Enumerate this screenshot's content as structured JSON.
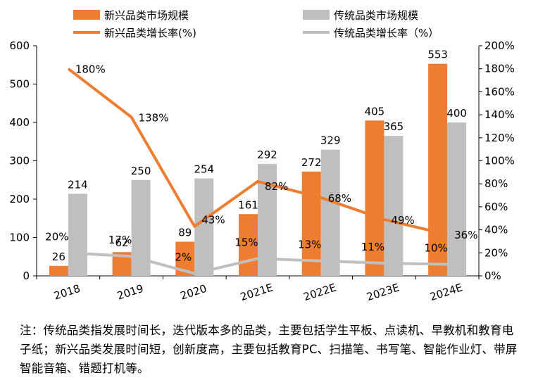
{
  "chart_data": {
    "type": "bar+line",
    "categories": [
      "2018",
      "2019",
      "2020",
      "2021E",
      "2022E",
      "2023E",
      "2024E"
    ],
    "bar_series": [
      {
        "name": "新兴品类市场规模",
        "values": [
          26,
          62,
          89,
          161,
          272,
          405,
          553
        ],
        "color": "#ED7D31"
      },
      {
        "name": "传统品类市场规模",
        "values": [
          214,
          250,
          254,
          292,
          329,
          365,
          400
        ],
        "color": "#BFBFBF"
      }
    ],
    "line_series": [
      {
        "name": "新兴品类增长率(%)",
        "values": [
          180,
          138,
          43,
          82,
          68,
          49,
          36
        ],
        "labels": [
          "180%",
          "138%",
          "43%",
          "82%",
          "68%",
          "49%",
          "36%"
        ],
        "color": "#ED7D31"
      },
      {
        "name": "传统品类增长率（%）",
        "values": [
          20,
          17,
          2,
          15,
          13,
          11,
          10
        ],
        "labels": [
          "20%",
          "17%",
          "2%",
          "15%",
          "13%",
          "11%",
          "10%"
        ],
        "color": "#BFBFBF"
      }
    ],
    "y_left": {
      "min": 0,
      "max": 600,
      "ticks": [
        "0",
        "100",
        "200",
        "300",
        "400",
        "500",
        "600"
      ]
    },
    "y_right": {
      "min": 0,
      "max": 200,
      "ticks": [
        "0%",
        "20%",
        "40%",
        "60%",
        "80%",
        "100%",
        "120%",
        "140%",
        "160%",
        "180%",
        "200%"
      ]
    },
    "legend_position": "top",
    "grid": false
  },
  "note": "注：传统品类指发展时间长，迭代版本多的品类，主要包括学生平板、点读机、早教机和教育电子纸；新兴品类发展时间短，创新度高，主要包括教育PC、扫描笔、书写笔、智能作业灯、带屏智能音箱、错题打机等。"
}
